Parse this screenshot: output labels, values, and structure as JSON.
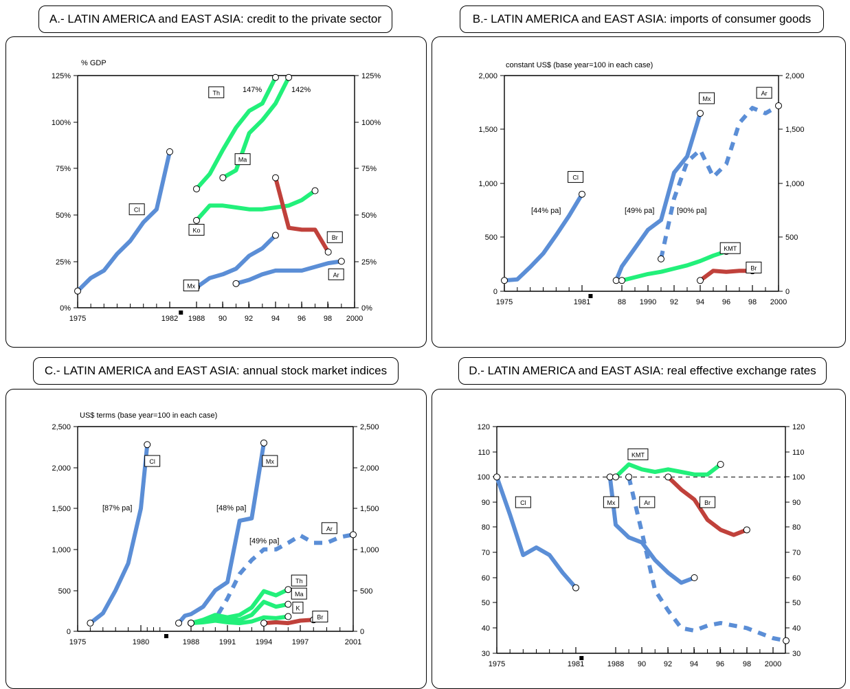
{
  "chart_data": [
    {
      "type": "line",
      "panel_title": "A.- LATIN AMERICA and EAST ASIA: credit to the private sector",
      "unit_label": "% GDP",
      "x_ticks": [
        "1975",
        "1982",
        "1988",
        "90",
        "92",
        "94",
        "96",
        "98",
        "2000"
      ],
      "y_ticks": [
        "0%",
        "25%",
        "50%",
        "75%",
        "100%",
        "125%"
      ],
      "ylim": [
        0,
        125
      ],
      "series": [
        {
          "name": "Cl",
          "color": "#5b8ed6",
          "dashed": false,
          "points": [
            [
              1975,
              9
            ],
            [
              1976,
              16
            ],
            [
              1977,
              20
            ],
            [
              1978,
              29
            ],
            [
              1979,
              36
            ],
            [
              1980,
              46
            ],
            [
              1981,
              53
            ],
            [
              1982,
              84
            ]
          ]
        },
        {
          "name": "Th",
          "color": "#22f07a",
          "dashed": false,
          "points": [
            [
              1988,
              64
            ],
            [
              1989,
              72
            ],
            [
              1990,
              85
            ],
            [
              1991,
              97
            ],
            [
              1992,
              106
            ],
            [
              1993,
              110
            ],
            [
              1994,
              124
            ]
          ]
        },
        {
          "name": "Ma",
          "color": "#22f07a",
          "dashed": false,
          "points": [
            [
              1990,
              70
            ],
            [
              1991,
              74
            ],
            [
              1992,
              94
            ],
            [
              1993,
              101
            ],
            [
              1994,
              110
            ],
            [
              1995,
              124
            ]
          ]
        },
        {
          "name": "Ko",
          "color": "#22f07a",
          "dashed": false,
          "points": [
            [
              1988,
              47
            ],
            [
              1989,
              55
            ],
            [
              1990,
              55
            ],
            [
              1991,
              54
            ],
            [
              1992,
              53
            ],
            [
              1993,
              53
            ],
            [
              1994,
              54
            ],
            [
              1995,
              55
            ],
            [
              1996,
              58
            ],
            [
              1997,
              63
            ]
          ]
        },
        {
          "name": "Mx",
          "color": "#5b8ed6",
          "dashed": false,
          "points": [
            [
              1988,
              11
            ],
            [
              1989,
              16
            ],
            [
              1990,
              18
            ],
            [
              1991,
              21
            ],
            [
              1992,
              28
            ],
            [
              1993,
              32
            ],
            [
              1994,
              39
            ]
          ]
        },
        {
          "name": "Ar",
          "color": "#5b8ed6",
          "dashed": false,
          "points": [
            [
              1991,
              13
            ],
            [
              1992,
              15
            ],
            [
              1993,
              18
            ],
            [
              1994,
              20
            ],
            [
              1995,
              20
            ],
            [
              1996,
              20
            ],
            [
              1997,
              22
            ],
            [
              1998,
              24
            ],
            [
              1999,
              25
            ]
          ]
        },
        {
          "name": "Br",
          "color": "#c0413b",
          "dashed": false,
          "points": [
            [
              1994,
              70
            ],
            [
              1995,
              43
            ],
            [
              1996,
              42
            ],
            [
              1997,
              42
            ],
            [
              1998,
              30
            ]
          ]
        }
      ],
      "annotations": [
        "147%",
        "142%"
      ]
    },
    {
      "type": "line",
      "panel_title": "B.- LATIN AMERICA and EAST ASIA: imports of consumer goods",
      "unit_label": "constant US$ (base year=100 in each case)",
      "x_ticks": [
        "1975",
        "1981",
        "88",
        "1990",
        "92",
        "94",
        "96",
        "98",
        "2000"
      ],
      "y_ticks": [
        "0",
        "500",
        "1,000",
        "1,500",
        "2,000"
      ],
      "ylim": [
        0,
        2000
      ],
      "series": [
        {
          "name": "Cl",
          "color": "#5b8ed6",
          "dashed": false,
          "points": [
            [
              1975,
              100
            ],
            [
              1976,
              110
            ],
            [
              1977,
              225
            ],
            [
              1978,
              350
            ],
            [
              1979,
              520
            ],
            [
              1980,
              700
            ],
            [
              1981,
              900
            ]
          ]
        },
        {
          "name": "Mx",
          "color": "#5b8ed6",
          "dashed": false,
          "points": [
            [
              1987,
              100
            ],
            [
              1988,
              230
            ],
            [
              1989,
              400
            ],
            [
              1990,
              570
            ],
            [
              1991,
              660
            ],
            [
              1992,
              1100
            ],
            [
              1993,
              1250
            ],
            [
              1994,
              1650
            ]
          ]
        },
        {
          "name": "Ar",
          "color": "#5b8ed6",
          "dashed": true,
          "points": [
            [
              1991,
              300
            ],
            [
              1992,
              860
            ],
            [
              1993,
              1200
            ],
            [
              1994,
              1310
            ],
            [
              1995,
              1060
            ],
            [
              1996,
              1180
            ],
            [
              1997,
              1560
            ],
            [
              1998,
              1700
            ],
            [
              1999,
              1650
            ],
            [
              2000,
              1720
            ]
          ]
        },
        {
          "name": "KMT",
          "color": "#22f07a",
          "dashed": false,
          "points": [
            [
              1988,
              100
            ],
            [
              1989,
              130
            ],
            [
              1990,
              160
            ],
            [
              1991,
              180
            ],
            [
              1992,
              210
            ],
            [
              1993,
              240
            ],
            [
              1994,
              280
            ],
            [
              1995,
              330
            ],
            [
              1996,
              370
            ]
          ]
        },
        {
          "name": "Br",
          "color": "#c0413b",
          "dashed": false,
          "points": [
            [
              1994,
              100
            ],
            [
              1995,
              190
            ],
            [
              1996,
              180
            ],
            [
              1997,
              190
            ],
            [
              1998,
              190
            ]
          ]
        }
      ],
      "annotations": [
        "[44% pa]",
        "[49% pa]",
        "[90% pa]"
      ]
    },
    {
      "type": "line",
      "panel_title": "C.- LATIN AMERICA and EAST ASIA: annual stock market indices",
      "unit_label": "US$ terms (base year=100 in each case)",
      "x_ticks": [
        "1975",
        "1980",
        "1988",
        "1991",
        "1994",
        "1997",
        "2001"
      ],
      "y_ticks": [
        "0",
        "500",
        "1,000",
        "1,500",
        "2,000",
        "2,500"
      ],
      "ylim": [
        0,
        2500
      ],
      "series": [
        {
          "name": "Cl",
          "color": "#5b8ed6",
          "dashed": false,
          "points": [
            [
              1976,
              100
            ],
            [
              1977,
              220
            ],
            [
              1978,
              500
            ],
            [
              1979,
              830
            ],
            [
              1980,
              1500
            ],
            [
              1981,
              2280
            ]
          ]
        },
        {
          "name": "Mx",
          "color": "#5b8ed6",
          "dashed": false,
          "points": [
            [
              1986,
              100
            ],
            [
              1987,
              190
            ],
            [
              1988,
              210
            ],
            [
              1989,
              300
            ],
            [
              1990,
              500
            ],
            [
              1991,
              600
            ],
            [
              1992,
              1350
            ],
            [
              1993,
              1380
            ],
            [
              1994,
              2300
            ]
          ]
        },
        {
          "name": "Ar",
          "color": "#5b8ed6",
          "dashed": true,
          "points": [
            [
              1988,
              100
            ],
            [
              1989,
              120
            ],
            [
              1990,
              150
            ],
            [
              1991,
              400
            ],
            [
              1992,
              700
            ],
            [
              1993,
              870
            ],
            [
              1994,
              1000
            ],
            [
              1995,
              1000
            ],
            [
              1996,
              1080
            ],
            [
              1997,
              1170
            ],
            [
              1998,
              1080
            ],
            [
              1999,
              1080
            ],
            [
              2000,
              1150
            ],
            [
              2001,
              1180
            ]
          ]
        },
        {
          "name": "Th",
          "color": "#22f07a",
          "dashed": false,
          "points": [
            [
              1988,
              100
            ],
            [
              1989,
              140
            ],
            [
              1990,
              200
            ],
            [
              1991,
              170
            ],
            [
              1992,
              200
            ],
            [
              1993,
              290
            ],
            [
              1994,
              490
            ],
            [
              1995,
              440
            ],
            [
              1996,
              510
            ]
          ]
        },
        {
          "name": "Ma",
          "color": "#22f07a",
          "dashed": false,
          "points": [
            [
              1988,
              100
            ],
            [
              1989,
              120
            ],
            [
              1990,
              160
            ],
            [
              1991,
              150
            ],
            [
              1992,
              140
            ],
            [
              1993,
              200
            ],
            [
              1994,
              360
            ],
            [
              1995,
              300
            ],
            [
              1996,
              330
            ]
          ]
        },
        {
          "name": "K",
          "color": "#22f07a",
          "dashed": false,
          "points": [
            [
              1988,
              100
            ],
            [
              1989,
              110
            ],
            [
              1990,
              130
            ],
            [
              1991,
              110
            ],
            [
              1992,
              100
            ],
            [
              1993,
              120
            ],
            [
              1994,
              170
            ],
            [
              1995,
              160
            ],
            [
              1996,
              180
            ]
          ]
        },
        {
          "name": "Br",
          "color": "#c0413b",
          "dashed": false,
          "points": [
            [
              1994,
              100
            ],
            [
              1995,
              110
            ],
            [
              1996,
              100
            ],
            [
              1997,
              130
            ],
            [
              1998,
              140
            ]
          ]
        }
      ],
      "annotations": [
        "[87% pa]",
        "[48% pa]",
        "[49% pa]"
      ]
    },
    {
      "type": "line",
      "panel_title": "D.- LATIN AMERICA and EAST ASIA: real effective exchange rates",
      "unit_label": "",
      "x_ticks": [
        "1975",
        "1981",
        "1988",
        "90",
        "92",
        "94",
        "96",
        "98",
        "2000"
      ],
      "y_ticks": [
        "30",
        "40",
        "50",
        "60",
        "70",
        "80",
        "90",
        "100",
        "110",
        "120"
      ],
      "ylim": [
        30,
        120
      ],
      "reference_line": 100,
      "series": [
        {
          "name": "Cl",
          "color": "#5b8ed6",
          "dashed": false,
          "points": [
            [
              1975,
              100
            ],
            [
              1976,
              85
            ],
            [
              1977,
              69
            ],
            [
              1978,
              72
            ],
            [
              1979,
              69
            ],
            [
              1980,
              62
            ],
            [
              1981,
              56
            ]
          ]
        },
        {
          "name": "Mx",
          "color": "#5b8ed6",
          "dashed": false,
          "points": [
            [
              1987,
              100
            ],
            [
              1988,
              81
            ],
            [
              1989,
              76
            ],
            [
              1990,
              74
            ],
            [
              1991,
              67
            ],
            [
              1992,
              62
            ],
            [
              1993,
              58
            ],
            [
              1994,
              60
            ]
          ]
        },
        {
          "name": "Ar",
          "color": "#5b8ed6",
          "dashed": true,
          "points": [
            [
              1989,
              100
            ],
            [
              1990,
              78
            ],
            [
              1991,
              55
            ],
            [
              1992,
              47
            ],
            [
              1993,
              40
            ],
            [
              1994,
              39
            ],
            [
              1995,
              41
            ],
            [
              1996,
              42
            ],
            [
              1997,
              41
            ],
            [
              1998,
              40
            ],
            [
              1999,
              38
            ],
            [
              2000,
              36
            ],
            [
              2001,
              35
            ]
          ]
        },
        {
          "name": "KMT",
          "color": "#22f07a",
          "dashed": false,
          "points": [
            [
              1988,
              100
            ],
            [
              1989,
              105
            ],
            [
              1990,
              103
            ],
            [
              1991,
              102
            ],
            [
              1992,
              103
            ],
            [
              1993,
              102
            ],
            [
              1994,
              101
            ],
            [
              1995,
              101
            ],
            [
              1996,
              105
            ]
          ]
        },
        {
          "name": "Br",
          "color": "#c0413b",
          "dashed": false,
          "points": [
            [
              1992,
              100
            ],
            [
              1993,
              95
            ],
            [
              1994,
              91
            ],
            [
              1995,
              83
            ],
            [
              1996,
              79
            ],
            [
              1997,
              77
            ],
            [
              1998,
              79
            ]
          ]
        }
      ]
    }
  ]
}
